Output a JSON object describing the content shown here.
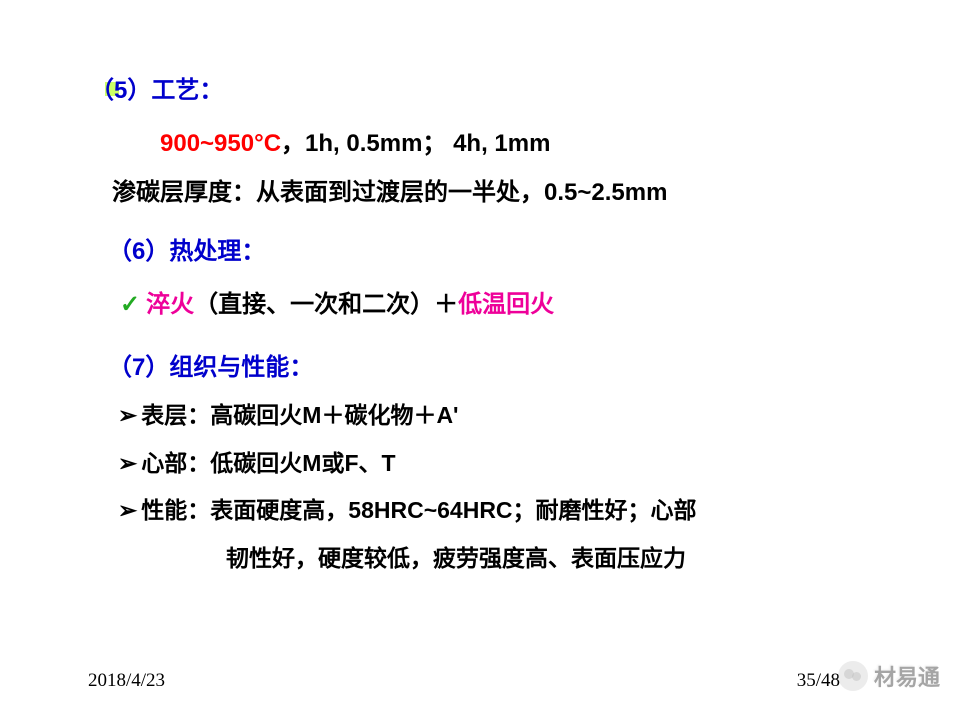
{
  "section5": {
    "heading": "（5）工艺：",
    "line1_red": "900~950°C",
    "line1_black": "，1h, 0.5mm； 4h, 1mm",
    "line2": "渗碳层厚度：从表面到过渡层的一半处，0.5~2.5mm"
  },
  "section6": {
    "heading": "（6）热处理：",
    "check": "✓",
    "quench_label": "淬火",
    "quench_paren": "（直接、一次和二次）",
    "plus": "＋",
    "temper": "低温回火"
  },
  "section7": {
    "heading": "（7）组织与性能：",
    "arrow": "➢",
    "surface": "表层：高碳回火M＋碳化物＋A'",
    "core": "心部：低碳回火M或F、T",
    "perf1": "性能：表面硬度高，58HRC~64HRC；耐磨性好；心部",
    "perf2": "韧性好，硬度较低，疲劳强度高、表面压应力"
  },
  "footer": {
    "date": "2018/4/23",
    "page": "35/48"
  },
  "watermark": {
    "text": "材易通"
  },
  "colors": {
    "heading_blue": "#0000cc",
    "red": "#ff0000",
    "magenta": "#ee0099",
    "check_green": "#22aa22",
    "marker_green": "#ccff66",
    "text_black": "#000000",
    "background": "#ffffff"
  },
  "typography": {
    "body_fontsize": 24,
    "bullet_fontsize": 23,
    "footer_fontsize": 19,
    "font_family": "SimHei"
  }
}
